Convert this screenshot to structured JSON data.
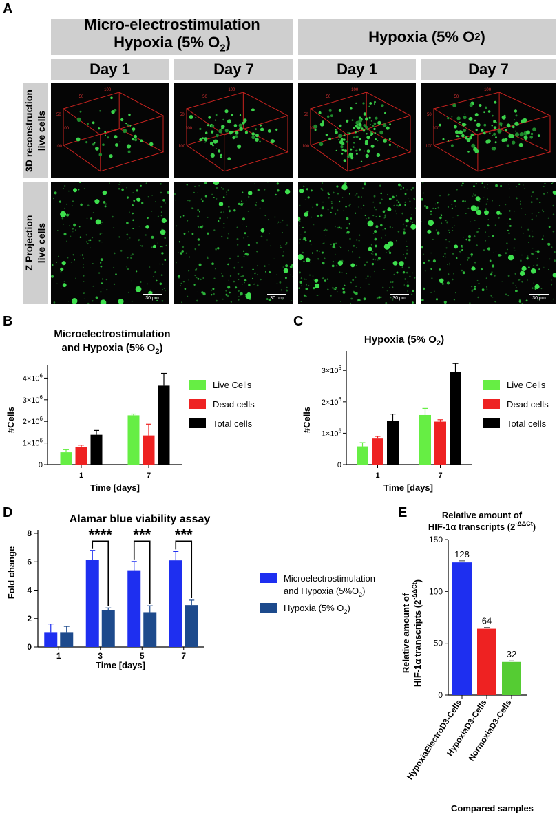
{
  "panel_a": {
    "letter": "A",
    "group_left_line1": "Micro-electrostimulation",
    "group_left_line2": "Hypoxia (5% O",
    "group_left_sub": "2",
    "group_left_close": ")",
    "group_right": "Hypoxia (5% O",
    "group_right_sub": "2",
    "group_right_close": ")",
    "days": [
      "Day 1",
      "Day 7",
      "Day 1",
      "Day 7"
    ],
    "row1_line1": "3D reconstruction",
    "row1_line2": "live cells",
    "row2_line1": "Z Projection",
    "row2_line2": "live cells",
    "box_tick_labels": [
      "50",
      "100",
      "50",
      "100",
      "100"
    ],
    "scale_bar": "30 µm"
  },
  "chart_data": [
    {
      "id": "B",
      "type": "bar",
      "title_line1": "Microelectrostimulation",
      "title_line2": "and Hypoxia (5% O",
      "title_sub": "2",
      "title_close": ")",
      "xlabel": "Time [days]",
      "ylabel": "#Cells",
      "categories": [
        "1",
        "7"
      ],
      "ylim": [
        0,
        4300000
      ],
      "yticks": [
        0,
        1000000,
        2000000,
        3000000,
        4000000
      ],
      "ytick_labels": [
        "0",
        "1×10",
        "2×10",
        "3×10",
        "4×10"
      ],
      "ytick_exp": "6",
      "series": [
        {
          "name": "Live Cells",
          "color": "#66ee44",
          "values": [
            570000,
            2280000
          ],
          "errors": [
            120000,
            60000
          ]
        },
        {
          "name": "Dead cells",
          "color": "#ee2222",
          "values": [
            810000,
            1350000
          ],
          "errors": [
            90000,
            520000
          ]
        },
        {
          "name": "Total cells",
          "color": "#000000",
          "values": [
            1380000,
            3650000
          ],
          "errors": [
            200000,
            570000
          ]
        }
      ]
    },
    {
      "id": "C",
      "type": "bar",
      "title_line1": "Hypoxia (5% O",
      "title_sub": "2",
      "title_close": ")",
      "xlabel": "Time [days]",
      "ylabel": "#Cells",
      "categories": [
        "1",
        "7"
      ],
      "ylim": [
        0,
        3400000
      ],
      "yticks": [
        0,
        1000000,
        2000000,
        3000000
      ],
      "ytick_labels": [
        "0",
        "1×10",
        "2×10",
        "3×10"
      ],
      "ytick_exp": "6",
      "series": [
        {
          "name": "Live Cells",
          "color": "#66ee44",
          "values": [
            580000,
            1580000
          ],
          "errors": [
            120000,
            210000
          ]
        },
        {
          "name": "Dead cells",
          "color": "#ee2222",
          "values": [
            830000,
            1370000
          ],
          "errors": [
            70000,
            60000
          ]
        },
        {
          "name": "Total cells",
          "color": "#000000",
          "values": [
            1400000,
            2960000
          ],
          "errors": [
            210000,
            260000
          ]
        }
      ]
    },
    {
      "id": "D",
      "type": "bar",
      "title": "Alamar blue viability assay",
      "xlabel": "Time [days]",
      "ylabel": "Fold change",
      "categories": [
        "1",
        "3",
        "5",
        "7"
      ],
      "ylim": [
        0,
        8
      ],
      "yticks": [
        0,
        2,
        4,
        6,
        8
      ],
      "ytick_labels": [
        "0",
        "2",
        "4",
        "6",
        "8"
      ],
      "series": [
        {
          "name_line1": "Microelectrostimulation",
          "name_line2": "and Hypoxia (5%O",
          "name_sub": "2",
          "name_close": ")",
          "color": "#1e2ff0",
          "values": [
            1.0,
            6.15,
            5.4,
            6.1
          ],
          "errors": [
            0.62,
            0.65,
            0.62,
            0.62
          ]
        },
        {
          "name_line1": "Hypoxia (5% O",
          "name_sub": "2",
          "name_close": ")",
          "color": "#1d4a8c",
          "values": [
            1.0,
            2.6,
            2.45,
            2.95
          ],
          "errors": [
            0.45,
            0.15,
            0.45,
            0.35
          ]
        }
      ],
      "significance": [
        "",
        "****",
        "***",
        "***"
      ]
    },
    {
      "id": "E",
      "type": "bar",
      "title_line1": "Relative amount of",
      "title_line2": "HIF-1α transcripts (2",
      "title_sup": "-ΔΔCt",
      "title_close": ")",
      "xlabel": "Compared samples",
      "ylabel_line1": "Relative amount of",
      "ylabel_line2": "HIF-1α transcripts (2",
      "ylabel_sup": "-ΔΔCt",
      "ylabel_close": ")",
      "categories": [
        "HypoxiaElectroD3-Cells",
        "HypoxiaD3-Cells",
        "NormoxiaD3-Cells"
      ],
      "values": [
        128,
        64,
        32
      ],
      "value_labels": [
        "128",
        "64",
        "32"
      ],
      "errors": [
        1.5,
        1.2,
        1.0
      ],
      "colors": [
        "#1e2ff0",
        "#ee2222",
        "#55cc33"
      ],
      "ylim": [
        0,
        150
      ],
      "yticks": [
        0,
        50,
        100,
        150
      ],
      "ytick_labels": [
        "0",
        "50",
        "100",
        "150"
      ]
    }
  ],
  "panel_letters": {
    "b": "B",
    "c": "C",
    "d": "D",
    "e": "E"
  }
}
